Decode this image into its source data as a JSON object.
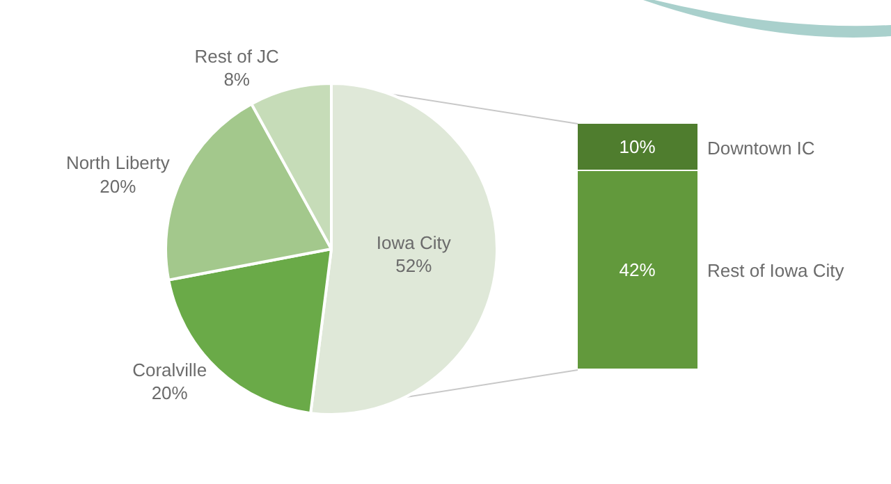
{
  "chart_data": [
    {
      "type": "pie",
      "categories": [
        "Iowa City",
        "Coralville",
        "North Liberty",
        "Rest of JC"
      ],
      "values": [
        52,
        20,
        20,
        8
      ],
      "colors": [
        "#dfe8d8",
        "#6aaa48",
        "#a3c88c",
        "#c6dcb8"
      ],
      "value_labels": [
        "52%",
        "20%",
        "20%",
        "8%"
      ]
    },
    {
      "type": "bar",
      "stacked": true,
      "categories": [
        null
      ],
      "series": [
        {
          "name": "Rest of Iowa City",
          "color": "#62993c",
          "values": [
            42
          ],
          "value_labels": [
            "42%"
          ]
        },
        {
          "name": "Downtown IC",
          "color": "#4f7d2e",
          "values": [
            10
          ],
          "value_labels": [
            "10%"
          ]
        }
      ]
    }
  ]
}
